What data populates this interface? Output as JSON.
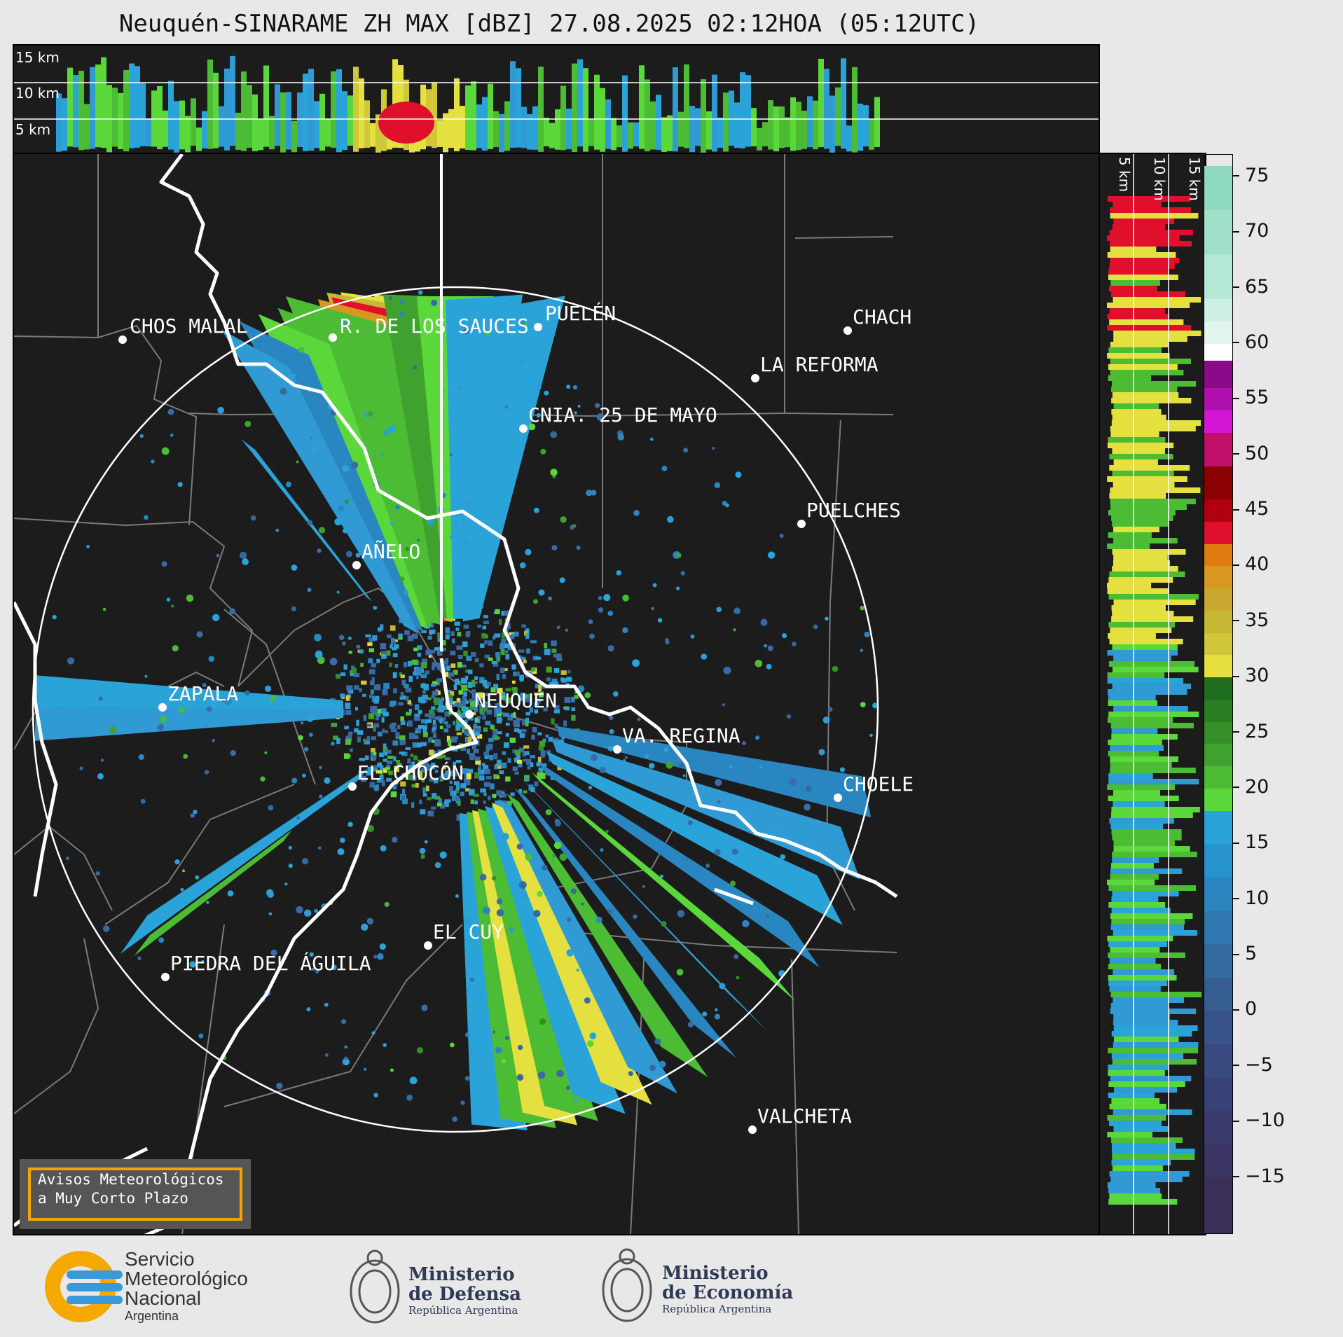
{
  "title": "Neuquén-SINARAME ZH MAX [dBZ] 27.08.2025 02:12HOA (05:12UTC)",
  "height_labels_top": [
    "15 km",
    "10 km",
    "5 km"
  ],
  "height_labels_side": [
    "5 km",
    "10 km",
    "15 km"
  ],
  "cities": [
    {
      "name": "CHOS MALAL"
    },
    {
      "name": "R. DE LOS SAUCES"
    },
    {
      "name": "PUELÉN"
    },
    {
      "name": "CHACH"
    },
    {
      "name": "LA REFORMA"
    },
    {
      "name": "CNIA. 25 DE MAYO"
    },
    {
      "name": "PUELCHES"
    },
    {
      "name": "AÑELO"
    },
    {
      "name": "ZAPALA"
    },
    {
      "name": "NEUQUÉN"
    },
    {
      "name": "VA. REGINA"
    },
    {
      "name": "EL CHOCÓN"
    },
    {
      "name": "CHOELE"
    },
    {
      "name": "EL CUY"
    },
    {
      "name": "PIEDRA DEL ÁGUILA"
    },
    {
      "name": "VALCHETA"
    }
  ],
  "colorbar": {
    "unit": "dBZ",
    "ticks": [
      "75",
      "70",
      "65",
      "60",
      "55",
      "50",
      "45",
      "40",
      "35",
      "30",
      "25",
      "20",
      "15",
      "10",
      "5",
      "0",
      "−5",
      "−10",
      "−15"
    ],
    "range": [
      -20,
      77
    ]
  },
  "notice": {
    "line1": "Avisos Meteorológicos",
    "line2": "a Muy Corto Plazo"
  },
  "logos": {
    "smn": {
      "line1": "Servicio",
      "line2": "Meteorológico",
      "line3": "Nacional",
      "line4": "Argentina"
    },
    "defensa": {
      "line1": "Ministerio",
      "line2": "de Defensa",
      "line3": "República Argentina"
    },
    "economia": {
      "line1": "Ministerio",
      "line2": "de Economía",
      "line3": "República Argentina"
    }
  }
}
